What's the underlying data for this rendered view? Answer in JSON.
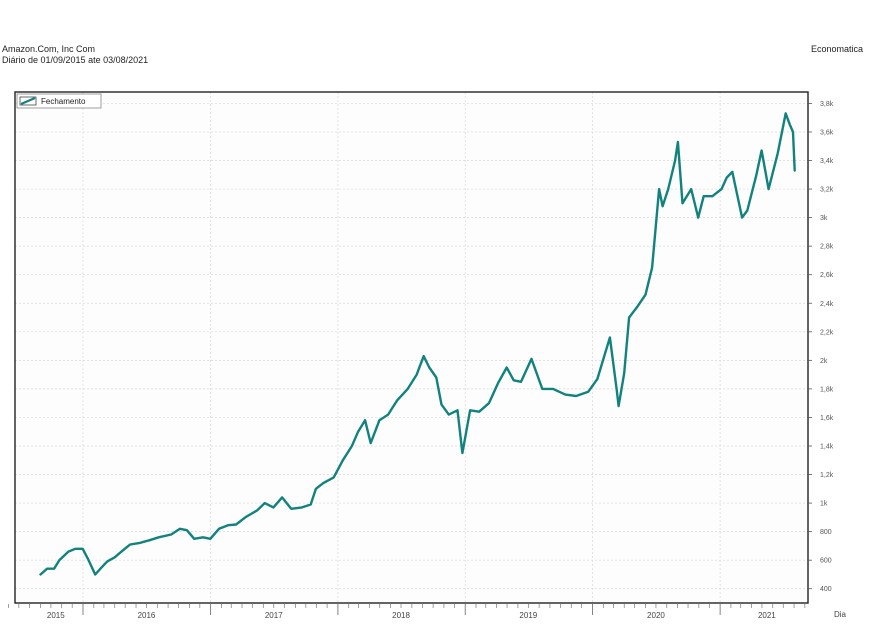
{
  "header": {
    "title": "Amazon.Com, Inc Com",
    "subtitle": "Diário de 01/09/2015 ate 03/08/2021",
    "source": "Economatica"
  },
  "colors": {
    "line": "#12827e",
    "frame": "#222222",
    "grid": "#d8d8d8",
    "background": "#fdfdfd"
  },
  "chart_data": {
    "type": "line",
    "title": "",
    "xlabel": "Dia",
    "ylabel": "",
    "ylim": [
      300,
      3880
    ],
    "xlim": [
      "2015-06-20",
      "2021-09-10"
    ],
    "legend": {
      "position": "top-left",
      "entries": [
        "Fechamento"
      ]
    },
    "grid": true,
    "y_ticks": [
      {
        "value": 400,
        "label": "400"
      },
      {
        "value": 600,
        "label": "600"
      },
      {
        "value": 800,
        "label": "800"
      },
      {
        "value": 1000,
        "label": "1k"
      },
      {
        "value": 1200,
        "label": "1,2k"
      },
      {
        "value": 1400,
        "label": "1,4k"
      },
      {
        "value": 1600,
        "label": "1,6k"
      },
      {
        "value": 1800,
        "label": "1,8k"
      },
      {
        "value": 2000,
        "label": "2k"
      },
      {
        "value": 2200,
        "label": "2,2k"
      },
      {
        "value": 2400,
        "label": "2,4k"
      },
      {
        "value": 2600,
        "label": "2,6k"
      },
      {
        "value": 2800,
        "label": "2,8k"
      },
      {
        "value": 3000,
        "label": "3k"
      },
      {
        "value": 3200,
        "label": "3,2k"
      },
      {
        "value": 3400,
        "label": "3,4k"
      },
      {
        "value": 3600,
        "label": "3,6k"
      },
      {
        "value": 3800,
        "label": "3,8k"
      }
    ],
    "x_ticks": [
      {
        "date": "2015-10-15",
        "label": "2015"
      },
      {
        "date": "2016-07-01",
        "label": "2016"
      },
      {
        "date": "2017-07-01",
        "label": "2017"
      },
      {
        "date": "2018-07-01",
        "label": "2018"
      },
      {
        "date": "2019-07-01",
        "label": "2019"
      },
      {
        "date": "2020-07-01",
        "label": "2020"
      },
      {
        "date": "2021-05-15",
        "label": "2021"
      }
    ],
    "year_boundaries": [
      "2016-01-01",
      "2017-01-01",
      "2018-01-01",
      "2019-01-01",
      "2020-01-01",
      "2021-01-01"
    ],
    "series": [
      {
        "name": "Fechamento",
        "points": [
          [
            "2015-09-01",
            500
          ],
          [
            "2015-09-20",
            540
          ],
          [
            "2015-10-10",
            540
          ],
          [
            "2015-10-25",
            600
          ],
          [
            "2015-11-20",
            660
          ],
          [
            "2015-12-10",
            680
          ],
          [
            "2015-12-31",
            680
          ],
          [
            "2016-01-15",
            610
          ],
          [
            "2016-02-05",
            500
          ],
          [
            "2016-02-20",
            540
          ],
          [
            "2016-03-10",
            590
          ],
          [
            "2016-04-01",
            620
          ],
          [
            "2016-04-25",
            670
          ],
          [
            "2016-05-15",
            710
          ],
          [
            "2016-06-10",
            720
          ],
          [
            "2016-07-10",
            740
          ],
          [
            "2016-08-05",
            760
          ],
          [
            "2016-09-10",
            780
          ],
          [
            "2016-10-05",
            820
          ],
          [
            "2016-10-25",
            810
          ],
          [
            "2016-11-15",
            750
          ],
          [
            "2016-12-10",
            760
          ],
          [
            "2016-12-31",
            750
          ],
          [
            "2017-01-25",
            820
          ],
          [
            "2017-02-20",
            845
          ],
          [
            "2017-03-15",
            850
          ],
          [
            "2017-04-10",
            900
          ],
          [
            "2017-05-15",
            950
          ],
          [
            "2017-06-05",
            1000
          ],
          [
            "2017-06-30",
            970
          ],
          [
            "2017-07-25",
            1040
          ],
          [
            "2017-08-20",
            960
          ],
          [
            "2017-09-20",
            970
          ],
          [
            "2017-10-15",
            990
          ],
          [
            "2017-10-30",
            1100
          ],
          [
            "2017-11-20",
            1140
          ],
          [
            "2017-12-20",
            1180
          ],
          [
            "2018-01-15",
            1300
          ],
          [
            "2018-02-10",
            1400
          ],
          [
            "2018-02-28",
            1500
          ],
          [
            "2018-03-20",
            1580
          ],
          [
            "2018-04-05",
            1420
          ],
          [
            "2018-04-30",
            1580
          ],
          [
            "2018-05-25",
            1620
          ],
          [
            "2018-06-20",
            1720
          ],
          [
            "2018-07-20",
            1800
          ],
          [
            "2018-08-15",
            1900
          ],
          [
            "2018-09-04",
            2030
          ],
          [
            "2018-09-20",
            1950
          ],
          [
            "2018-10-10",
            1880
          ],
          [
            "2018-10-25",
            1690
          ],
          [
            "2018-11-15",
            1620
          ],
          [
            "2018-12-10",
            1650
          ],
          [
            "2018-12-24",
            1350
          ],
          [
            "2019-01-15",
            1650
          ],
          [
            "2019-02-10",
            1640
          ],
          [
            "2019-03-10",
            1700
          ],
          [
            "2019-04-05",
            1840
          ],
          [
            "2019-04-30",
            1950
          ],
          [
            "2019-05-20",
            1860
          ],
          [
            "2019-06-10",
            1850
          ],
          [
            "2019-07-10",
            2010
          ],
          [
            "2019-08-10",
            1800
          ],
          [
            "2019-09-10",
            1800
          ],
          [
            "2019-10-15",
            1760
          ],
          [
            "2019-11-15",
            1750
          ],
          [
            "2019-12-20",
            1780
          ],
          [
            "2020-01-15",
            1870
          ],
          [
            "2020-02-05",
            2040
          ],
          [
            "2020-02-20",
            2160
          ],
          [
            "2020-03-10",
            1800
          ],
          [
            "2020-03-16",
            1680
          ],
          [
            "2020-04-01",
            1910
          ],
          [
            "2020-04-15",
            2300
          ],
          [
            "2020-05-10",
            2380
          ],
          [
            "2020-06-01",
            2460
          ],
          [
            "2020-06-20",
            2650
          ],
          [
            "2020-07-10",
            3200
          ],
          [
            "2020-07-20",
            3080
          ],
          [
            "2020-08-05",
            3200
          ],
          [
            "2020-08-25",
            3400
          ],
          [
            "2020-09-02",
            3530
          ],
          [
            "2020-09-15",
            3100
          ],
          [
            "2020-10-10",
            3200
          ],
          [
            "2020-10-30",
            3000
          ],
          [
            "2020-11-15",
            3150
          ],
          [
            "2020-12-10",
            3150
          ],
          [
            "2021-01-05",
            3200
          ],
          [
            "2021-01-20",
            3280
          ],
          [
            "2021-02-05",
            3320
          ],
          [
            "2021-03-05",
            3000
          ],
          [
            "2021-03-20",
            3050
          ],
          [
            "2021-04-15",
            3300
          ],
          [
            "2021-04-30",
            3470
          ],
          [
            "2021-05-20",
            3200
          ],
          [
            "2021-06-15",
            3450
          ],
          [
            "2021-07-08",
            3730
          ],
          [
            "2021-07-20",
            3650
          ],
          [
            "2021-07-29",
            3600
          ],
          [
            "2021-08-03",
            3330
          ]
        ]
      }
    ]
  }
}
